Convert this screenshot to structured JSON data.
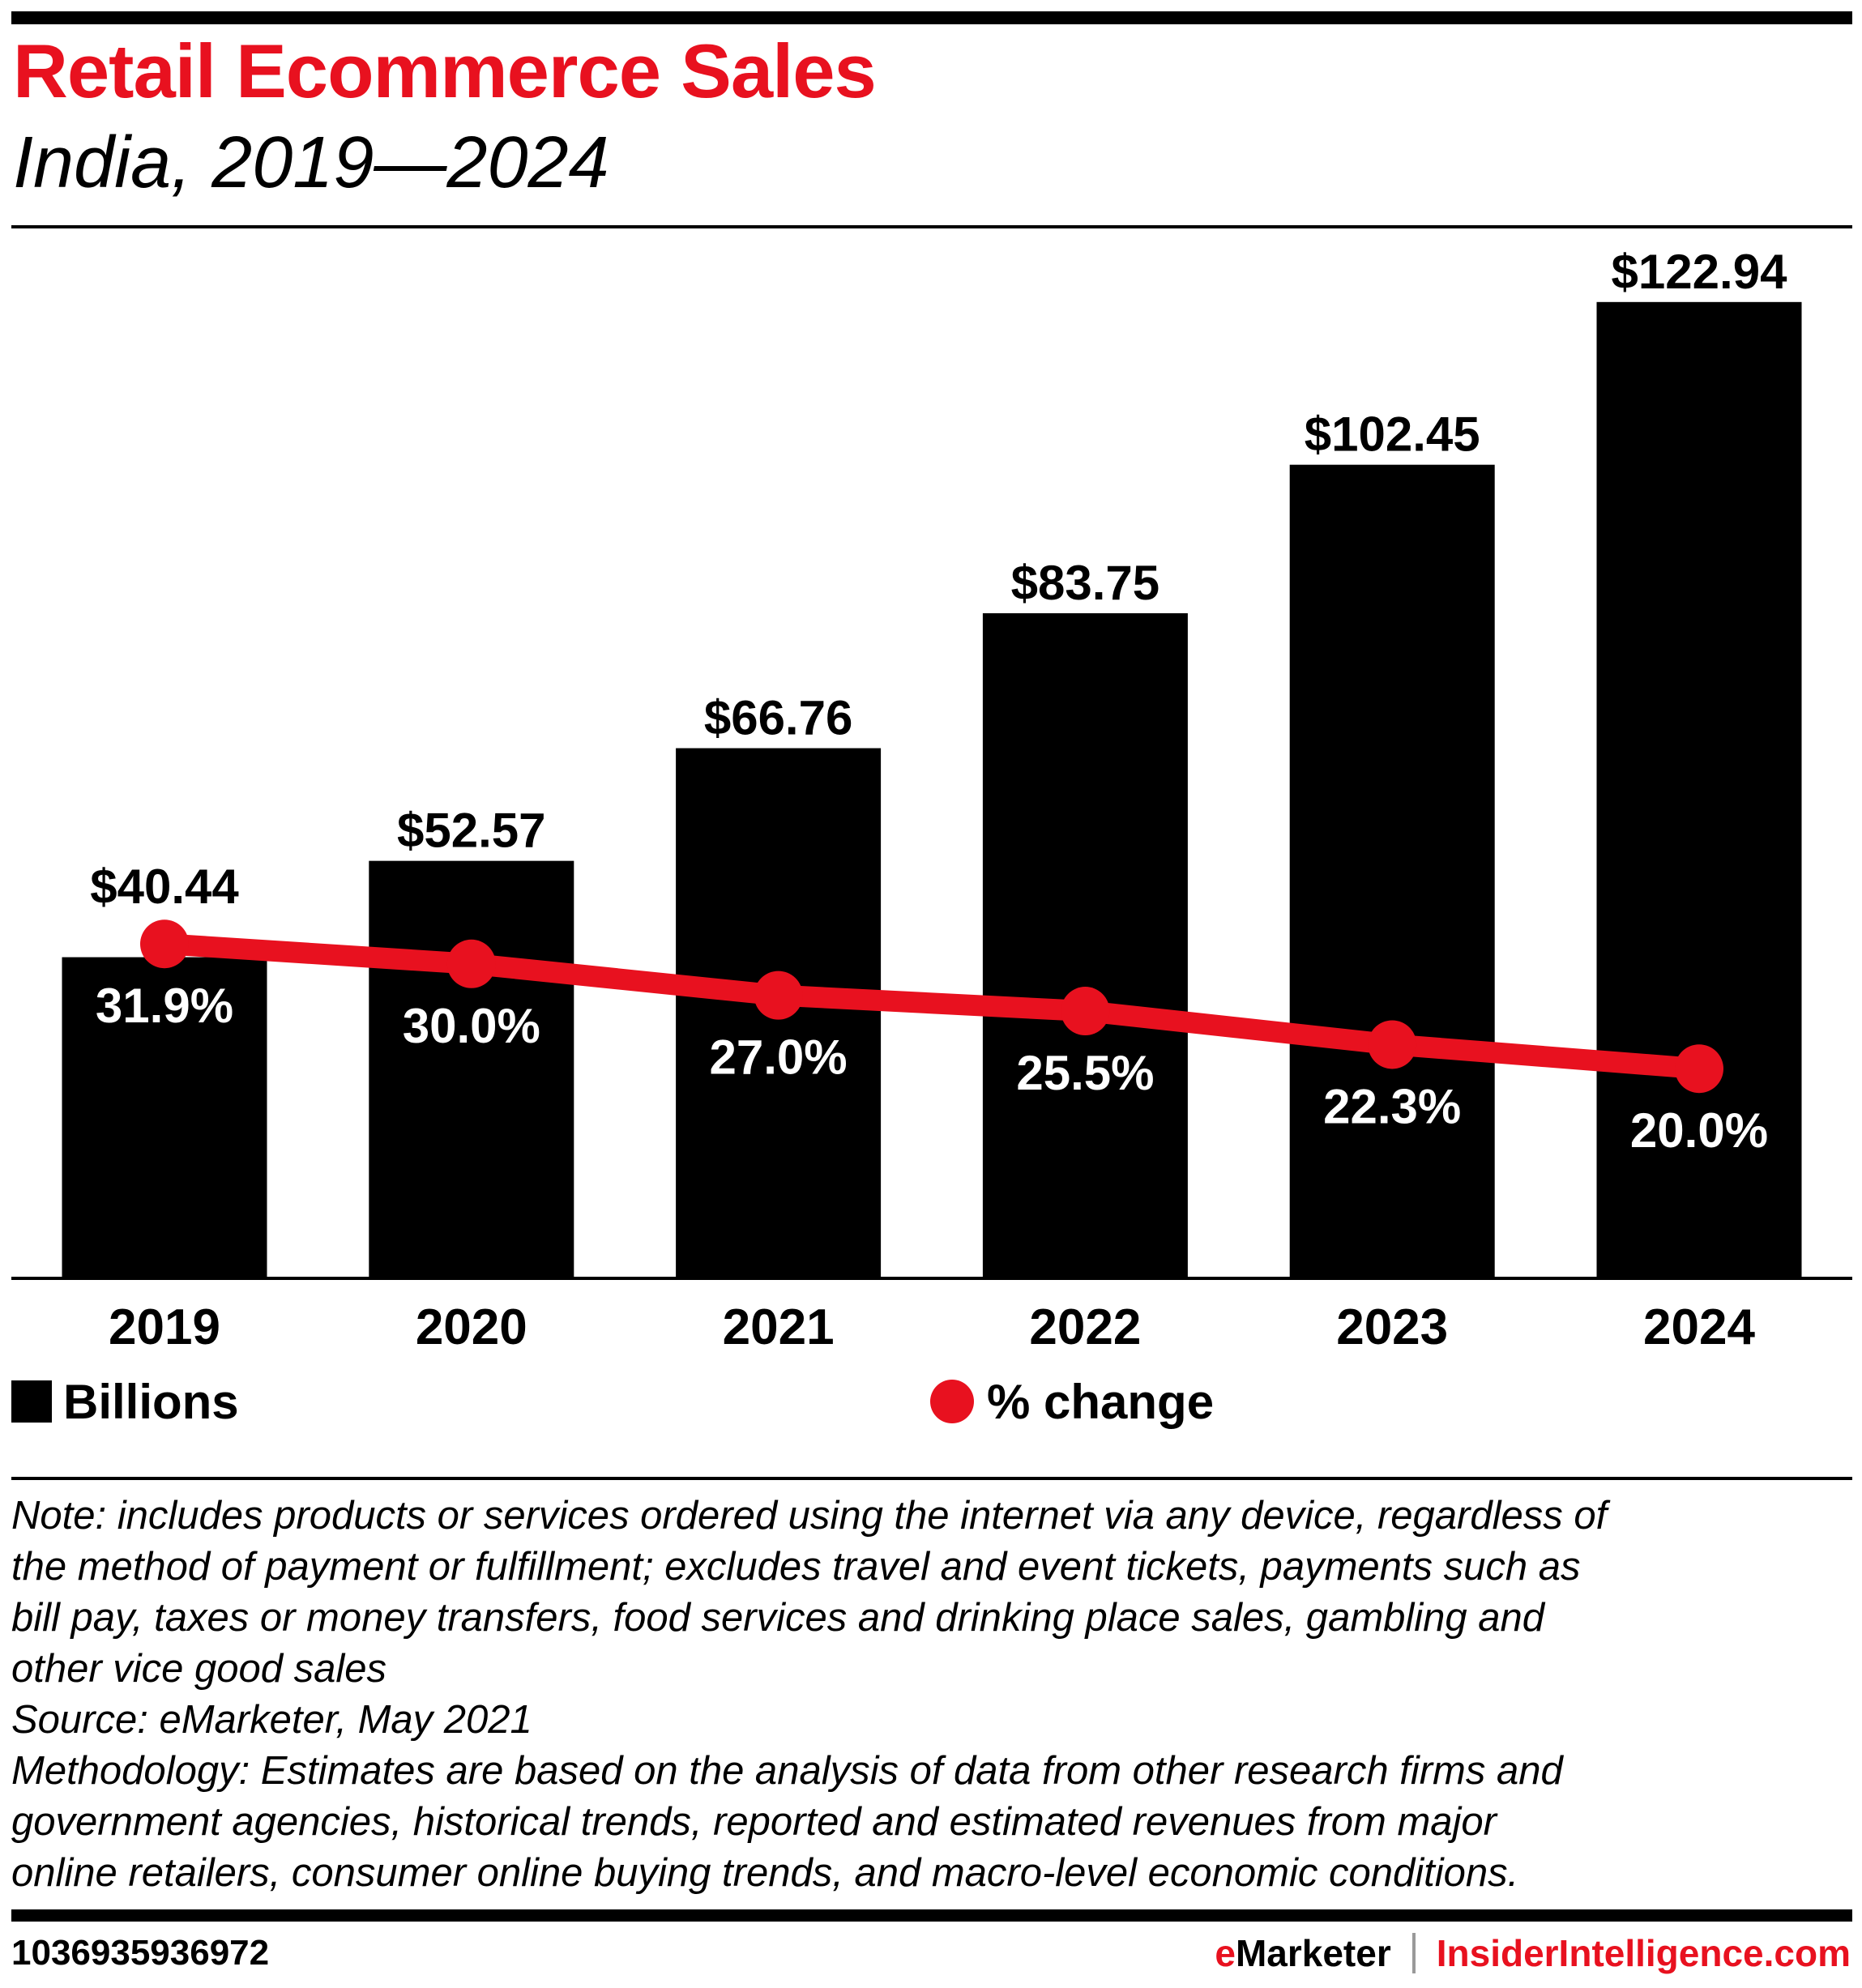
{
  "header": {
    "title": "Retail Ecommerce Sales",
    "subtitle": "India, 2019—2024"
  },
  "colors": {
    "bar": "#000000",
    "line": "#E8111F",
    "brand_red": "#E8111F",
    "bar_label": "#000000",
    "line_label": "#FFFFFF"
  },
  "chart_data": {
    "type": "bar",
    "title": "Retail Ecommerce Sales",
    "subtitle": "India, 2019—2024",
    "categories": [
      "2019",
      "2020",
      "2021",
      "2022",
      "2023",
      "2024"
    ],
    "series": [
      {
        "name": "Billions",
        "type": "bar",
        "unit": "USD billions",
        "values": [
          40.44,
          52.57,
          66.76,
          83.75,
          102.45,
          122.94
        ],
        "labels": [
          "$40.44",
          "$52.57",
          "$66.76",
          "$83.75",
          "$102.45",
          "$122.94"
        ],
        "ylim": [
          0,
          132
        ]
      },
      {
        "name": "% change",
        "type": "line",
        "unit": "percent",
        "values": [
          31.9,
          30.0,
          27.0,
          25.5,
          22.3,
          20.0
        ],
        "labels": [
          "31.9%",
          "30.0%",
          "27.0%",
          "25.5%",
          "22.3%",
          "20.0%"
        ],
        "ylim": [
          0,
          100
        ]
      }
    ],
    "xlabel": "",
    "ylabel": "",
    "grid": false,
    "y_axis_visible": false,
    "legend": {
      "placement": "bottom",
      "entries": [
        {
          "label": "Billions",
          "marker": "square"
        },
        {
          "label": "% change",
          "marker": "circle"
        }
      ]
    }
  },
  "notes": [
    "Note: includes products or services ordered using the internet via any device, regardless of",
    "the method of payment or fulfillment; excludes travel and event tickets, payments such as",
    "bill pay, taxes or money transfers, food services and drinking place sales, gambling and",
    "other vice good sales",
    "Source: eMarketer, May 2021",
    "Methodology: Estimates are based on the analysis of data from other research firms and",
    "government agencies, historical trends, reported and estimated revenues from major",
    "online retailers, consumer online buying trends, and macro-level economic conditions."
  ],
  "footer": {
    "chart_id": "1036935936972",
    "brand_e": "e",
    "brand_marketer": "Marketer",
    "brand_site": "InsiderIntelligence.com"
  }
}
